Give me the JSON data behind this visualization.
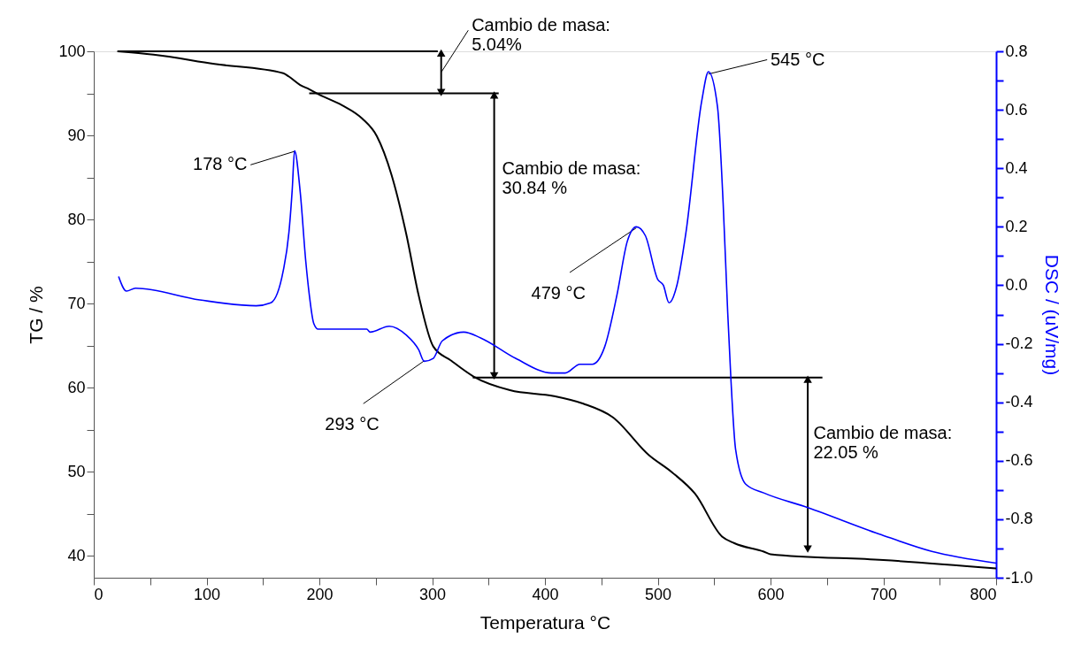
{
  "chart_data": {
    "type": "line",
    "xlabel": "Temperatura  °C",
    "ylabel": "TG / %",
    "y2label": "DSC / (uV/mg)",
    "xlim": [
      0,
      800
    ],
    "ylim": [
      37.4,
      100
    ],
    "y2lim": [
      -1.0,
      0.8
    ],
    "xticks": [
      0,
      {
        "value": 50,
        "label": null
      },
      100,
      {
        "value": 150,
        "label": null
      },
      200,
      {
        "value": 250,
        "label": null
      },
      300,
      {
        "value": 350,
        "label": null
      },
      400,
      {
        "value": 450,
        "label": null
      },
      500,
      {
        "value": 550,
        "label": null
      },
      600,
      {
        "value": 650,
        "label": null
      },
      700,
      {
        "value": 750,
        "label": null
      },
      800
    ],
    "yticks": [
      40,
      {
        "value": 45,
        "label": null
      },
      50,
      {
        "value": 55,
        "label": null
      },
      60,
      {
        "value": 65,
        "label": null
      },
      70,
      {
        "value": 75,
        "label": null
      },
      80,
      {
        "value": 85,
        "label": null
      },
      90,
      {
        "value": 95,
        "label": null
      },
      100
    ],
    "y2ticks": [
      {
        "value": -1.0,
        "label": "-1.0"
      },
      {
        "value": -0.9,
        "label": null
      },
      -0.8,
      {
        "value": -0.7,
        "label": null
      },
      -0.6,
      {
        "value": -0.5,
        "label": null
      },
      -0.4,
      {
        "value": -0.3,
        "label": null
      },
      -0.2,
      {
        "value": -0.1,
        "label": null
      },
      {
        "value": 0.0,
        "label": "0.0"
      },
      {
        "value": 0.1,
        "label": null
      },
      0.2,
      {
        "value": 0.3,
        "label": null
      },
      0.4,
      {
        "value": 0.5,
        "label": null
      },
      0.6,
      {
        "value": 0.7,
        "label": null
      },
      0.8
    ],
    "grid": false,
    "line_style": "solid",
    "series": [
      {
        "color": "#000000",
        "x": [
          21,
          53,
          107,
          168,
          173,
          183,
          191,
          199,
          220,
          238,
          251,
          264,
          277,
          288,
          301,
          317,
          337,
          369,
          408,
          434,
          460,
          492,
          513,
          533,
          557,
          568,
          594,
          600,
          700,
          800
        ],
        "values": [
          100,
          99.6,
          98.5,
          97.4,
          97.0,
          96.0,
          95.5,
          94.9,
          93.6,
          92.0,
          89.9,
          85.3,
          78.3,
          71.0,
          64.9,
          63.2,
          61.3,
          59.7,
          59.0,
          58.1,
          56.5,
          52.0,
          49.9,
          47.4,
          42.3,
          41.5,
          40.5,
          40.2,
          39.5,
          38.5
        ]
      },
      {
        "color": "#0000ff",
        "axis": "y2",
        "x": [
          22,
          29,
          37,
          94,
          144,
          157,
          168,
          173,
          176,
          178,
          183,
          188,
          191,
          195,
          199,
          225,
          242,
          245,
          262,
          277,
          288,
          293,
          301,
          309,
          328,
          343,
          374,
          406,
          418,
          431,
          442,
          453,
          464,
          473,
          481,
          489,
          500,
          505,
          510,
          517,
          525,
          539,
          545,
          553,
          558,
          562,
          565,
          569,
          578,
          594,
          633,
          696,
          743,
          800
        ],
        "values": [
          0.03,
          -0.02,
          -0.01,
          -0.05,
          -0.07,
          -0.06,
          0.05,
          0.18,
          0.33,
          0.46,
          0.32,
          0.08,
          -0.03,
          -0.13,
          -0.15,
          -0.15,
          -0.15,
          -0.16,
          -0.14,
          -0.17,
          -0.22,
          -0.26,
          -0.25,
          -0.19,
          -0.16,
          -0.18,
          -0.25,
          -0.3,
          -0.3,
          -0.27,
          -0.27,
          -0.21,
          -0.03,
          0.15,
          0.2,
          0.17,
          0.02,
          0.0,
          -0.06,
          0.0,
          0.18,
          0.63,
          0.73,
          0.61,
          0.28,
          -0.09,
          -0.33,
          -0.56,
          -0.68,
          -0.71,
          -0.76,
          -0.85,
          -0.91,
          -0.95
        ]
      },
      {
        "color": "#000000",
        "x": [
          21,
          305
        ],
        "values": [
          100,
          100
        ]
      },
      {
        "color": "#000000",
        "x": [
          191,
          359
        ],
        "values": [
          95.0,
          95.0
        ]
      },
      {
        "color": "#000000",
        "x": [
          336,
          646
        ],
        "values": [
          61.2,
          61.2
        ]
      },
      {
        "color": "#000000",
        "marker": "triangle",
        "x": [
          308,
          308
        ],
        "values": [
          99.8,
          95.1
        ]
      },
      {
        "color": "#000000",
        "marker": "triangle",
        "x": [
          355,
          355
        ],
        "values": [
          94.8,
          61.4
        ]
      },
      {
        "color": "#000000",
        "marker": "triangle",
        "x": [
          633,
          633
        ],
        "values": [
          61.0,
          40.8
        ]
      }
    ],
    "annotations": [
      {
        "text": "Cambio de masa:\n5.04%",
        "x": 308,
        "y": 97.5
      },
      "Cambio de masa:\n30.84 %",
      "Cambio de masa:\n22.05 %",
      {
        "text": "178 °C",
        "x": 178,
        "y": 88.1
      },
      {
        "text": "293 °C",
        "x": 293,
        "y": 63.2
      },
      {
        "text": "479 °C",
        "x": 481,
        "y": 79.0
      },
      {
        "text": "545 °C",
        "x": 545,
        "y": 97.3
      }
    ]
  }
}
